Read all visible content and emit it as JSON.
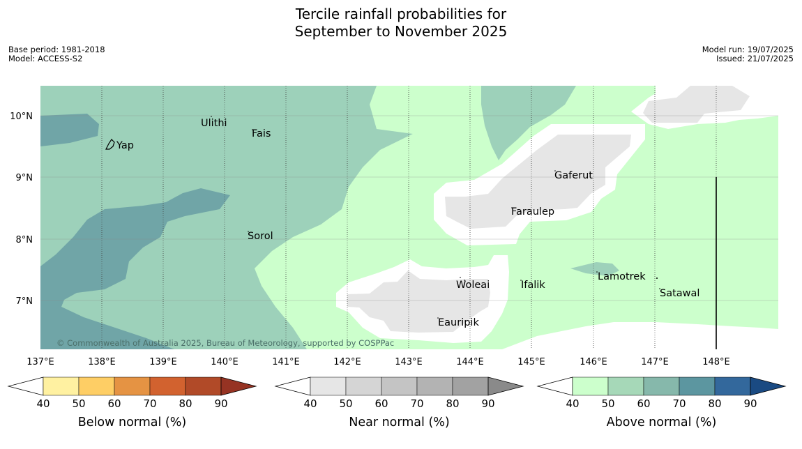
{
  "title_line1": "Tercile rainfall probabilities for",
  "title_line2": "September to November 2025",
  "base_period": "Base period: 1981-2018",
  "model": "Model: ACCESS-S2",
  "model_run": "Model run: 19/07/2025",
  "issued": "Issued: 21/07/2025",
  "copyright": "© Commonwealth of Australia 2025, Bureau of Meteorology, supported by COSPPac",
  "lat_labels": [
    "10°N",
    "9°N",
    "8°N",
    "7°N"
  ],
  "lon_labels": [
    "137°E",
    "138°E",
    "139°E",
    "140°E",
    "141°E",
    "142°E",
    "143°E",
    "144°E",
    "145°E",
    "146°E",
    "147°E",
    "148°E"
  ],
  "places": {
    "yap": "Yap",
    "ulithi": "Ulithi",
    "fais": "Fais",
    "sorol": "Sorol",
    "gaferut": "Gaferut",
    "faraulep": "Faraulep",
    "woleai": "Woleai",
    "ifalik": "Ifalik",
    "eauripik": "Eauripik",
    "lamotrek": "Lamotrek",
    "satawal": "Satawal"
  },
  "colorbars": {
    "below": {
      "title": "Below normal (%)",
      "ticks": [
        "40",
        "50",
        "60",
        "70",
        "80",
        "90"
      ],
      "colors": [
        "#fff1a1",
        "#fece65",
        "#e59343",
        "#d2622f",
        "#b14a28",
        "#963323"
      ]
    },
    "near": {
      "title": "Near normal (%)",
      "ticks": [
        "40",
        "50",
        "60",
        "70",
        "80",
        "90"
      ],
      "colors": [
        "#e6e6e6",
        "#d5d5d5",
        "#c4c4c4",
        "#b3b3b3",
        "#a2a2a2",
        "#8a8a8a"
      ]
    },
    "above": {
      "title": "Above normal (%)",
      "ticks": [
        "40",
        "50",
        "60",
        "70",
        "80",
        "90"
      ],
      "colors": [
        "#ccffcc",
        "#a6d8b8",
        "#86b8ab",
        "#5c96a0",
        "#33689c",
        "#1a4a82"
      ]
    }
  },
  "colors": {
    "above_50_60": "#9dd1ba",
    "above_60_70": "#70a5a7",
    "above_40_50": "#ccffcc",
    "near_40_50": "#e6e6e6"
  }
}
